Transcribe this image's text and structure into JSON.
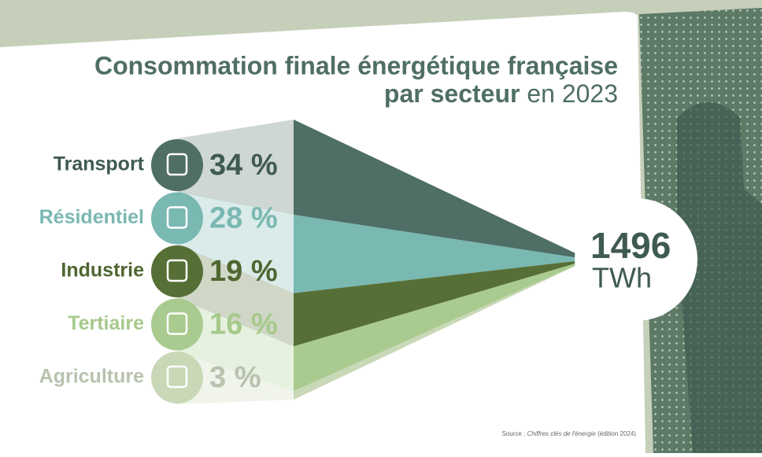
{
  "chart_data": {
    "type": "wedge",
    "title": [
      "Consommation finale énergétique française",
      "par secteur",
      "en 2023"
    ],
    "categories": [
      "Transport",
      "Résidentiel",
      "Industrie",
      "Tertiaire",
      "Agriculture"
    ],
    "values": [
      34,
      28,
      19,
      16,
      3
    ],
    "value_labels": [
      "34 %",
      "28 %",
      "19 %",
      "16 %",
      "3 %"
    ],
    "colors": [
      "#4f6e66",
      "#7ab8b2",
      "#566f36",
      "#a9cb8f",
      "#c9d8b7"
    ],
    "label_colors": [
      "#3f5a53",
      "#7ab8b2",
      "#4f6631",
      "#a6c98c",
      "#b8c3ae"
    ],
    "total": "1496",
    "unit": "TWh",
    "source": [
      "Source :",
      "Chiffres clés de l'énergie",
      "(édition 2024)"
    ]
  }
}
